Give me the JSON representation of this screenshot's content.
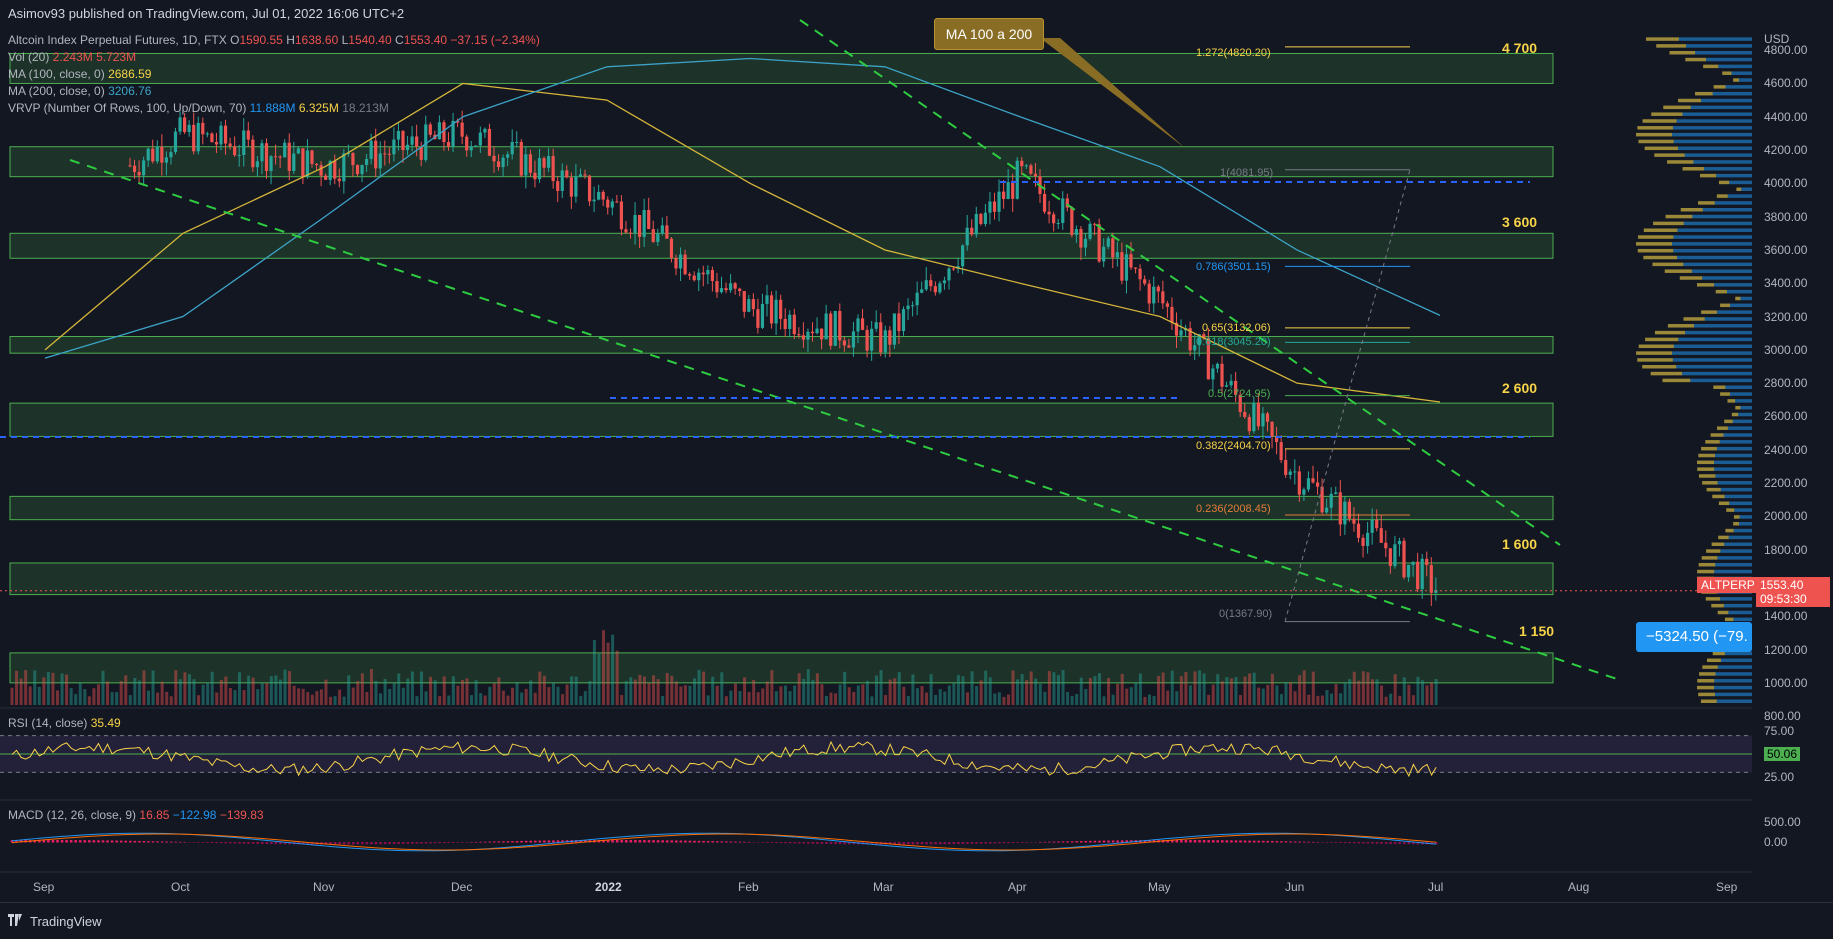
{
  "header": {
    "published": "Asimov93 published on TradingView.com, Jul 01, 2022 16:06 UTC+2"
  },
  "legend": {
    "symbol": "Altcoin Index Perpetual Futures, 1D, FTX",
    "ohlc": {
      "o_label": "O",
      "o": "1590.55",
      "h_label": "H",
      "h": "1638.60",
      "l_label": "L",
      "l": "1540.40",
      "c_label": "C",
      "c": "1553.40",
      "change": "−37.15 (−2.34%)"
    },
    "vol": {
      "label": "Vol (20)",
      "v1": "2.243M",
      "v2": "5.723M"
    },
    "ma100": {
      "label": "MA (100, close, 0)",
      "value": "2686.59"
    },
    "ma200": {
      "label": "MA (200, close, 0)",
      "value": "3206.76"
    },
    "vrvp": {
      "label": "VRVP (Number Of Rows, 100, Up/Down, 70)",
      "v1": "11.888M",
      "v2": "6.325M",
      "v3": "18.213M"
    }
  },
  "annotations": {
    "note": "MA 100 a 200",
    "levels": [
      "4 700",
      "3 600",
      "2 600",
      "1 600",
      "1 150"
    ],
    "fib": [
      {
        "text": "1.272(4820.20)",
        "color": "#f7d348"
      },
      {
        "text": "1(4081.95)",
        "color": "#787b86"
      },
      {
        "text": "0.786(3501.15)",
        "color": "#2196f3"
      },
      {
        "text": "0.65(3132.06)",
        "color": "#f7d348"
      },
      {
        "text": "0.618(3045.20)",
        "color": "#26a69a"
      },
      {
        "text": "0.5(2724.95)",
        "color": "#4caf50"
      },
      {
        "text": "0.382(2404.70)",
        "color": "#f7d348"
      },
      {
        "text": "0.236(2008.45)",
        "color": "#e57c3a"
      },
      {
        "text": "0(1367.90)",
        "color": "#787b86"
      }
    ],
    "measure": "−5324.50 (−79."
  },
  "price_axis": {
    "currency": "USD",
    "ticks": [
      "4800.00",
      "4600.00",
      "4400.00",
      "4200.00",
      "4000.00",
      "3800.00",
      "3600.00",
      "3400.00",
      "3200.00",
      "3000.00",
      "2800.00",
      "2600.00",
      "2400.00",
      "2200.00",
      "2000.00",
      "1800.00",
      "1600.00",
      "1400.00",
      "1200.00",
      "1000.00",
      "800.00"
    ],
    "last_symbol": "ALTPERP",
    "last_price": "1553.40",
    "countdown": "09:53:30"
  },
  "rsi": {
    "label": "RSI (14, close)",
    "value": "35.49",
    "ticks": [
      "75.00",
      "50.06",
      "25.00"
    ],
    "upper": 70,
    "lower": 30
  },
  "macd": {
    "label": "MACD (12, 26, close, 9)",
    "hist": "16.85",
    "macd": "−122.98",
    "signal": "−139.83",
    "ticks": [
      "500.00",
      "0.00"
    ]
  },
  "time_axis": [
    "Sep",
    "Oct",
    "Nov",
    "Dec",
    "2022",
    "Feb",
    "Mar",
    "Apr",
    "May",
    "Jun",
    "Jul",
    "Aug",
    "Sep"
  ],
  "footer": {
    "brand": "TradingView"
  },
  "colors": {
    "up": "#26a69a",
    "down": "#ef5350",
    "ma100": "#d4b53a",
    "ma200": "#3ca3c7",
    "zone": "#4caf50",
    "bg": "#131722"
  },
  "chart_data": {
    "type": "line",
    "title": "Altcoin Index Perpetual Futures, 1D, FTX",
    "xlabel": "",
    "ylabel": "USD",
    "ylim": [
      800,
      4900
    ],
    "x": [
      "Sep",
      "Oct",
      "Nov",
      "Dec",
      "2022",
      "Feb",
      "Mar",
      "Apr",
      "May",
      "Jun",
      "Jul"
    ],
    "series": [
      {
        "name": "ALTPERP close",
        "values": [
          3800,
          4300,
          4100,
          4300,
          3900,
          3250,
          3050,
          4050,
          3300,
          2250,
          1553
        ]
      },
      {
        "name": "MA (100, close, 0)",
        "values": [
          3000,
          3700,
          4100,
          4600,
          4500,
          4000,
          3600,
          3400,
          3200,
          2800,
          2687
        ]
      },
      {
        "name": "MA (200, close, 0)",
        "values": [
          2950,
          3200,
          3800,
          4400,
          4700,
          4750,
          4700,
          4400,
          4100,
          3600,
          3207
        ]
      }
    ],
    "zones": [
      [
        4600,
        4780
      ],
      [
        4040,
        4220
      ],
      [
        3550,
        3700
      ],
      [
        2980,
        3080
      ],
      [
        2480,
        2680
      ],
      [
        1980,
        2120
      ],
      [
        1530,
        1720
      ],
      [
        1000,
        1180
      ]
    ]
  }
}
